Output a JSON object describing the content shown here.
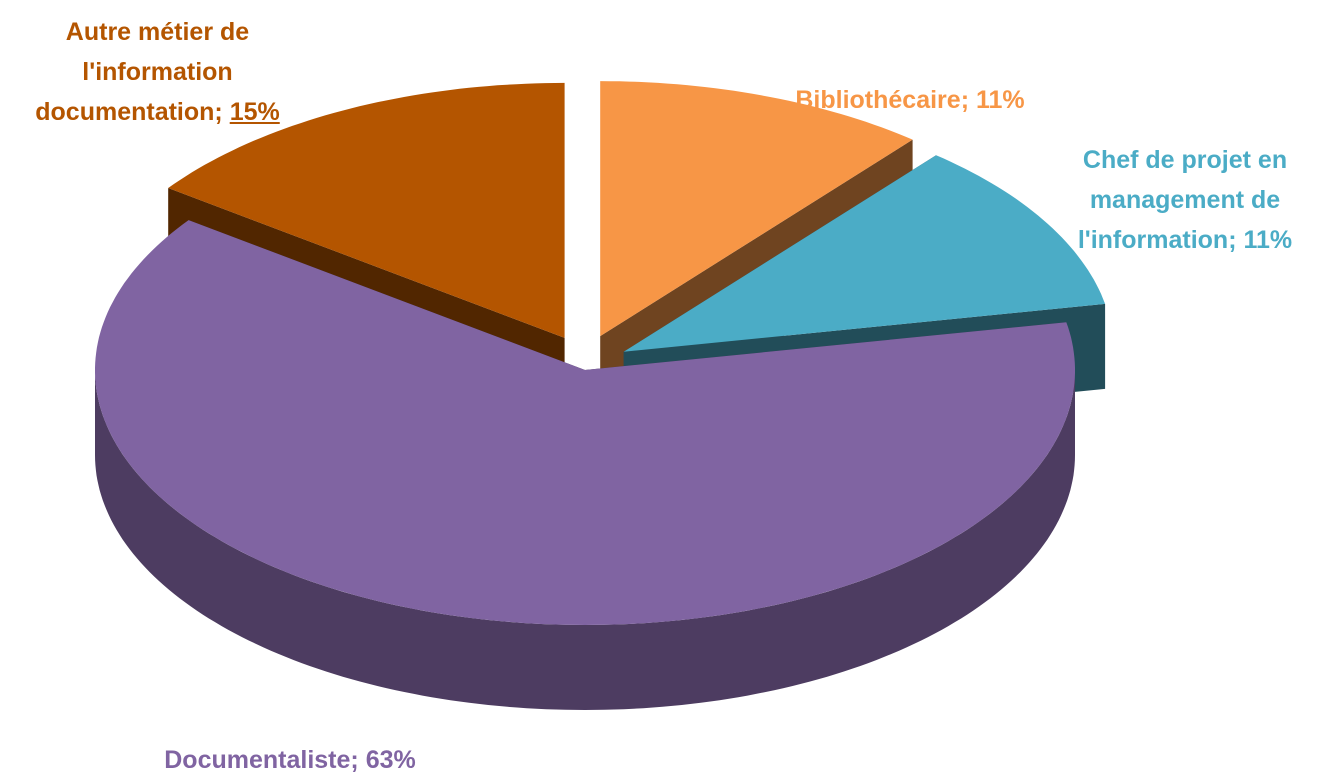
{
  "chart_data": {
    "type": "pie",
    "categories": [
      "Bibliothécaire",
      "Chef de projet en management de l'information",
      "Documentaliste",
      "Autre métier de l'information documentation"
    ],
    "values": [
      11,
      11,
      63,
      15
    ],
    "value_labels": [
      "11%",
      "11%",
      "63%",
      "15%"
    ],
    "separator": "; ",
    "colors": [
      "#f79646",
      "#4bacc6",
      "#8064a2",
      "#b45500"
    ]
  }
}
